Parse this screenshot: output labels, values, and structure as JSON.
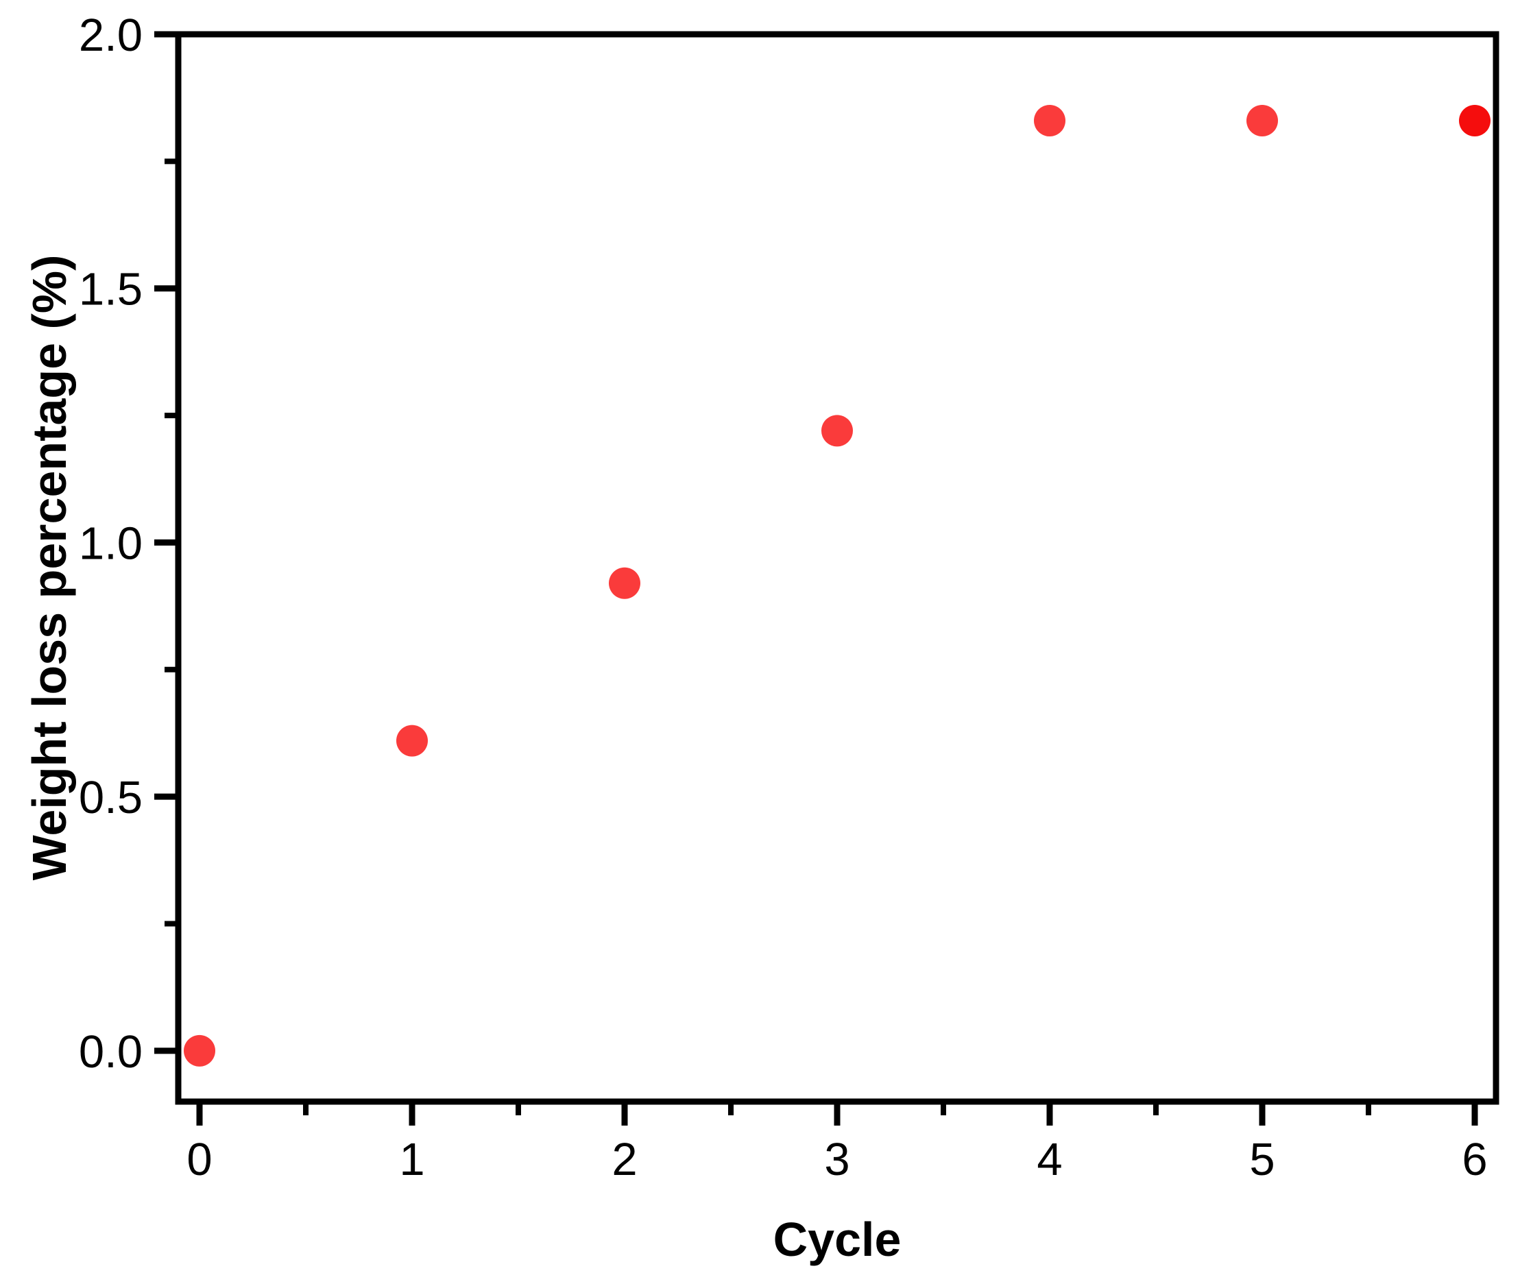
{
  "chart_data": {
    "type": "scatter",
    "title": "",
    "xlabel": "Cycle",
    "ylabel": "Weight loss percentage (%)",
    "x": [
      0,
      1,
      2,
      3,
      4,
      5,
      6
    ],
    "y": [
      0.0,
      0.61,
      0.92,
      1.22,
      1.83,
      1.83,
      1.83
    ],
    "xlim": [
      -0.1,
      6.1
    ],
    "ylim": [
      -0.1,
      2.0
    ],
    "x_ticks": [
      0,
      1,
      2,
      3,
      4,
      5,
      6
    ],
    "x_tick_labels": [
      "0",
      "1",
      "2",
      "3",
      "4",
      "5",
      "6"
    ],
    "x_minor_ticks": [
      0.5,
      1.5,
      2.5,
      3.5,
      4.5,
      5.5
    ],
    "y_ticks": [
      0.0,
      0.5,
      1.0,
      1.5,
      2.0
    ],
    "y_tick_labels": [
      "0.0",
      "0.5",
      "1.0",
      "1.5",
      "2.0"
    ],
    "y_minor_ticks": [
      0.25,
      0.75,
      1.25,
      1.75
    ],
    "grid": false,
    "legend": "none",
    "marker": {
      "shape": "circle",
      "colors": [
        "#fa3b3b",
        "#fa3b3b",
        "#fa3b3b",
        "#fa3b3b",
        "#fa3b3b",
        "#fa3b3b",
        "#f50d0d"
      ]
    },
    "axis_color": "#000000",
    "background_color": "#ffffff"
  }
}
